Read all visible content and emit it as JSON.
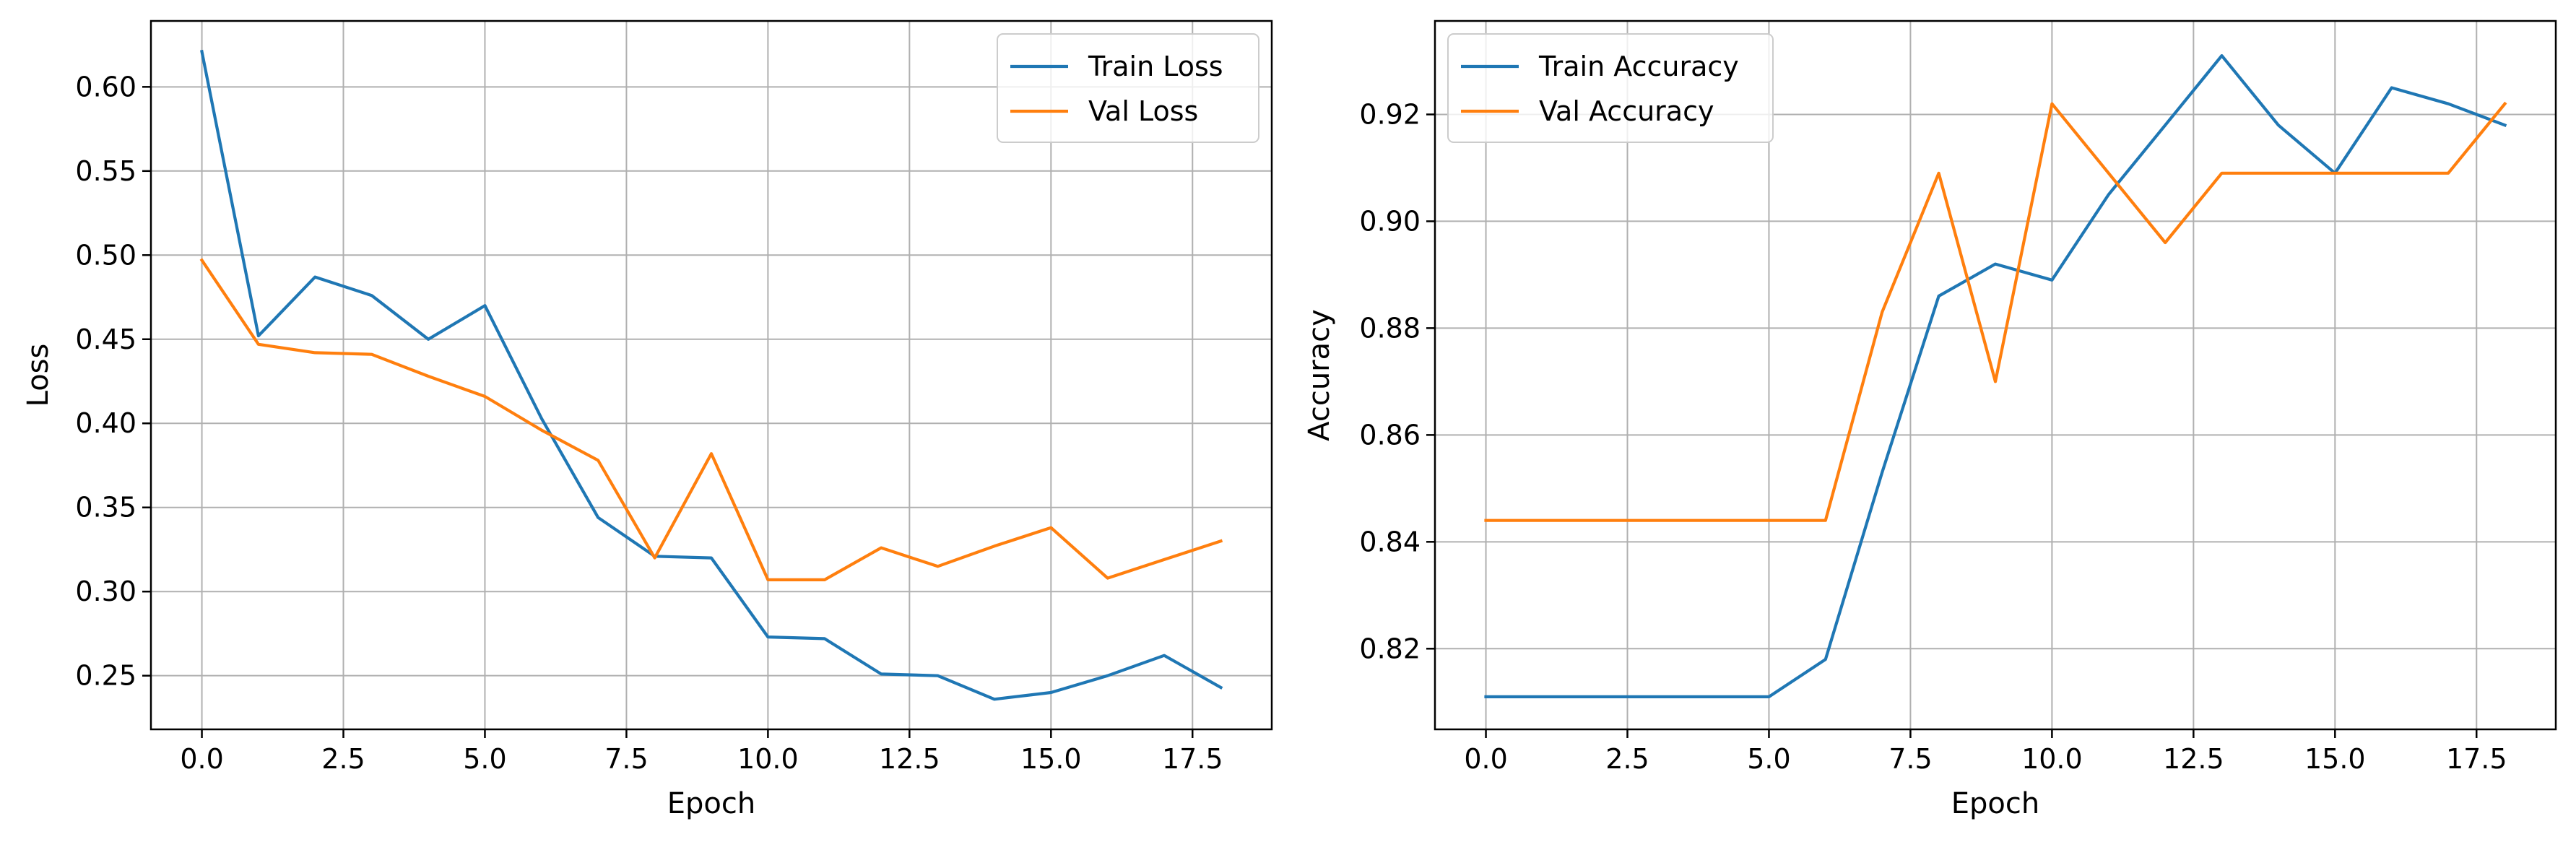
{
  "chart_data": [
    {
      "type": "line",
      "xlabel": "Epoch",
      "ylabel": "Loss",
      "xlim": [
        -0.9,
        18.9
      ],
      "ylim": [
        0.2181,
        0.6392
      ],
      "xticks": [
        "0.0",
        "2.5",
        "5.0",
        "7.5",
        "10.0",
        "12.5",
        "15.0",
        "17.5"
      ],
      "yticks": [
        "0.25",
        "0.30",
        "0.35",
        "0.40",
        "0.45",
        "0.50",
        "0.55",
        "0.60"
      ],
      "grid": true,
      "legend_position": "top-right",
      "x": [
        0,
        1,
        2,
        3,
        4,
        5,
        6,
        7,
        8,
        9,
        10,
        11,
        12,
        13,
        14,
        15,
        16,
        17,
        18
      ],
      "series": [
        {
          "name": "Train Loss",
          "color": "#1f77b4",
          "values": [
            0.621,
            0.452,
            0.487,
            0.476,
            0.45,
            0.47,
            0.403,
            0.344,
            0.321,
            0.32,
            0.273,
            0.272,
            0.251,
            0.25,
            0.236,
            0.24,
            0.25,
            0.262,
            0.243
          ]
        },
        {
          "name": "Val Loss",
          "color": "#ff7f0e",
          "values": [
            0.497,
            0.447,
            0.442,
            0.441,
            0.428,
            0.416,
            0.396,
            0.378,
            0.32,
            0.382,
            0.307,
            0.307,
            0.326,
            0.315,
            0.327,
            0.338,
            0.308,
            0.319,
            0.33
          ]
        }
      ]
    },
    {
      "type": "line",
      "xlabel": "Epoch",
      "ylabel": "Accuracy",
      "xlim": [
        -0.9,
        18.9
      ],
      "ylim": [
        0.8049,
        0.9375
      ],
      "xticks": [
        "0.0",
        "2.5",
        "5.0",
        "7.5",
        "10.0",
        "12.5",
        "15.0",
        "17.5"
      ],
      "yticks": [
        "0.82",
        "0.84",
        "0.86",
        "0.88",
        "0.90",
        "0.92"
      ],
      "grid": true,
      "legend_position": "top-left",
      "x": [
        0,
        1,
        2,
        3,
        4,
        5,
        6,
        7,
        8,
        9,
        10,
        11,
        12,
        13,
        14,
        15,
        16,
        17,
        18
      ],
      "series": [
        {
          "name": "Train Accuracy",
          "color": "#1f77b4",
          "values": [
            0.811,
            0.811,
            0.811,
            0.811,
            0.811,
            0.811,
            0.818,
            0.853,
            0.886,
            0.892,
            0.889,
            0.905,
            0.918,
            0.931,
            0.918,
            0.909,
            0.925,
            0.922,
            0.918
          ]
        },
        {
          "name": "Val Accuracy",
          "color": "#ff7f0e",
          "values": [
            0.844,
            0.844,
            0.844,
            0.844,
            0.844,
            0.844,
            0.844,
            0.883,
            0.909,
            0.87,
            0.922,
            0.909,
            0.896,
            0.909,
            0.909,
            0.909,
            0.909,
            0.909,
            0.922
          ]
        }
      ]
    }
  ]
}
